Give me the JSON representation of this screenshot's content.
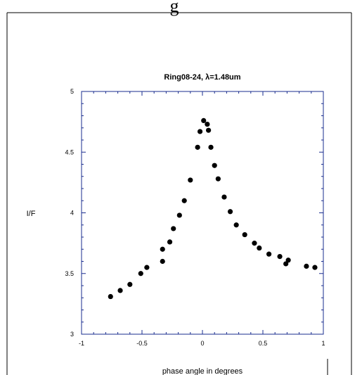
{
  "chart_data": {
    "type": "scatter",
    "top_fragment": "g",
    "title": "Ring08-24, λ=1.48um",
    "xlabel": "phase angle in degrees",
    "ylabel": "I/F",
    "xlim": [
      -1,
      1
    ],
    "ylim": [
      3,
      5
    ],
    "x_ticks": [
      -1,
      -0.5,
      0,
      0.5,
      1
    ],
    "x_tick_labels": [
      "-1",
      "-0.5",
      "0",
      "0.5",
      "1"
    ],
    "y_ticks": [
      3,
      3.5,
      4,
      4.5,
      5
    ],
    "y_tick_labels": [
      "3",
      "3.5",
      "4",
      "4.5",
      "5"
    ],
    "grid": false,
    "marker_color": "#000000",
    "points": [
      [
        -0.76,
        3.31
      ],
      [
        -0.68,
        3.36
      ],
      [
        -0.6,
        3.41
      ],
      [
        -0.51,
        3.5
      ],
      [
        -0.46,
        3.55
      ],
      [
        -0.33,
        3.6
      ],
      [
        -0.33,
        3.7
      ],
      [
        -0.27,
        3.76
      ],
      [
        -0.24,
        3.87
      ],
      [
        -0.19,
        3.98
      ],
      [
        -0.15,
        4.1
      ],
      [
        -0.1,
        4.27
      ],
      [
        -0.04,
        4.54
      ],
      [
        -0.02,
        4.67
      ],
      [
        0.01,
        4.76
      ],
      [
        0.04,
        4.73
      ],
      [
        0.05,
        4.68
      ],
      [
        0.07,
        4.54
      ],
      [
        0.1,
        4.39
      ],
      [
        0.13,
        4.28
      ],
      [
        0.18,
        4.13
      ],
      [
        0.23,
        4.01
      ],
      [
        0.28,
        3.9
      ],
      [
        0.35,
        3.82
      ],
      [
        0.43,
        3.75
      ],
      [
        0.47,
        3.71
      ],
      [
        0.55,
        3.66
      ],
      [
        0.64,
        3.64
      ],
      [
        0.69,
        3.58
      ],
      [
        0.71,
        3.61
      ],
      [
        0.86,
        3.56
      ],
      [
        0.93,
        3.55
      ]
    ]
  }
}
